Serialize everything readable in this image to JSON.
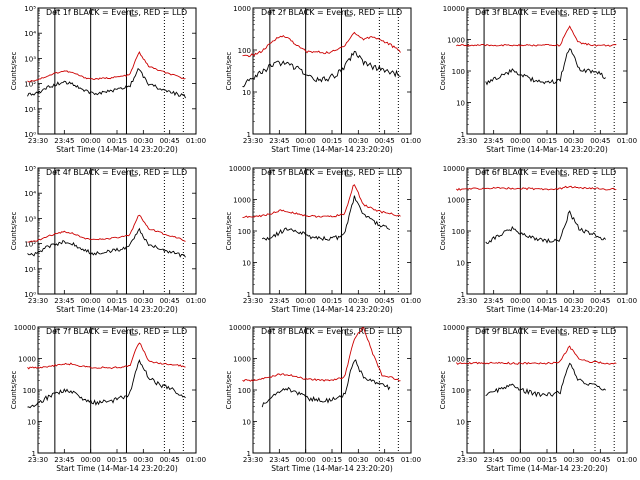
{
  "chart_data": {
    "type": "line",
    "panels": [
      {
        "title": "Det 1f BLACK = Events, RED = LLD",
        "scale": "A",
        "events": [
          35,
          40,
          70,
          90,
          120,
          90,
          60,
          40,
          45,
          50,
          60,
          80,
          400,
          90,
          70,
          50,
          40,
          30
        ],
        "lld": [
          120,
          140,
          190,
          260,
          320,
          260,
          180,
          150,
          160,
          170,
          190,
          220,
          1800,
          500,
          350,
          260,
          200,
          150
        ]
      },
      {
        "title": "Det 2f BLACK = Events, RED = LLD",
        "scale": "B",
        "events": [
          15,
          20,
          30,
          40,
          50,
          45,
          35,
          25,
          20,
          20,
          25,
          40,
          90,
          50,
          40,
          35,
          30,
          25
        ],
        "lld": [
          70,
          75,
          90,
          140,
          220,
          190,
          120,
          90,
          90,
          85,
          95,
          130,
          260,
          180,
          210,
          170,
          130,
          90
        ]
      },
      {
        "title": "Det 3f BLACK = Events, RED = LLD",
        "scale": "C",
        "events": [
          null,
          null,
          null,
          40,
          55,
          80,
          100,
          70,
          55,
          45,
          45,
          50,
          600,
          120,
          100,
          90,
          60,
          null
        ],
        "lld": [
          650,
          650,
          660,
          650,
          660,
          650,
          650,
          650,
          650,
          650,
          660,
          650,
          2600,
          800,
          700,
          650,
          650,
          650
        ]
      },
      {
        "title": "Det 4f BLACK = Events, RED = LLD",
        "scale": "A",
        "events": [
          35,
          40,
          70,
          90,
          120,
          90,
          60,
          40,
          45,
          50,
          60,
          80,
          400,
          90,
          70,
          50,
          40,
          30
        ],
        "lld": [
          110,
          130,
          180,
          250,
          300,
          250,
          170,
          140,
          150,
          160,
          180,
          210,
          1500,
          400,
          300,
          220,
          180,
          130
        ]
      },
      {
        "title": "Det 5f BLACK = Events, RED = LLD",
        "scale": "C",
        "events": [
          null,
          null,
          50,
          60,
          90,
          120,
          100,
          70,
          60,
          55,
          60,
          80,
          1200,
          350,
          200,
          150,
          120,
          null
        ],
        "lld": [
          280,
          280,
          300,
          350,
          450,
          400,
          350,
          300,
          290,
          280,
          300,
          350,
          3200,
          700,
          500,
          400,
          350,
          300
        ]
      },
      {
        "title": "Det 6f BLACK = Events, RED = LLD",
        "scale": "C",
        "events": [
          null,
          null,
          null,
          40,
          60,
          90,
          120,
          80,
          60,
          50,
          50,
          55,
          400,
          120,
          90,
          70,
          50,
          null
        ],
        "lld": [
          2100,
          2150,
          2200,
          2250,
          2300,
          2300,
          2250,
          2200,
          2200,
          2150,
          2150,
          2200,
          2600,
          2300,
          2250,
          2200,
          2150,
          2100
        ]
      },
      {
        "title": "Det 7f BLACK = Events, RED = LLD",
        "scale": "C",
        "events": [
          30,
          35,
          55,
          75,
          100,
          80,
          55,
          40,
          40,
          45,
          55,
          75,
          900,
          250,
          160,
          120,
          90,
          60
        ],
        "lld": [
          500,
          520,
          550,
          600,
          700,
          650,
          560,
          520,
          510,
          500,
          520,
          580,
          3500,
          900,
          700,
          650,
          620,
          560
        ]
      },
      {
        "title": "Det 8f BLACK = Events, RED = LLD",
        "scale": "C",
        "events": [
          null,
          null,
          30,
          50,
          90,
          110,
          80,
          55,
          50,
          45,
          55,
          70,
          1000,
          250,
          180,
          140,
          110,
          null
        ],
        "lld": [
          200,
          200,
          220,
          260,
          320,
          300,
          250,
          220,
          210,
          200,
          220,
          260,
          4000,
          10000,
          1500,
          300,
          250,
          200
        ]
      },
      {
        "title": "Det 9f BLACK = Events, RED = LLD",
        "scale": "C",
        "events": [
          null,
          null,
          null,
          70,
          90,
          120,
          150,
          100,
          80,
          70,
          70,
          80,
          700,
          200,
          150,
          130,
          100,
          null
        ],
        "lld": [
          700,
          700,
          720,
          700,
          750,
          720,
          700,
          700,
          700,
          700,
          720,
          750,
          2500,
          950,
          800,
          750,
          700,
          700
        ]
      }
    ],
    "x_ticks": [
      "23:30",
      "23:45",
      "00:00",
      "00:15",
      "00:30",
      "00:45",
      "01:00"
    ],
    "x_label": "Start Time (14-Mar-14 23:20:20)",
    "y_label": "Counts/sec",
    "y_scales": {
      "A": {
        "ticks": [
          "10⁵",
          "10⁴",
          "10³",
          "10²",
          "10¹",
          "10⁰"
        ],
        "ylim": [
          1,
          100000
        ]
      },
      "B": {
        "ticks": [
          "1000",
          "100",
          "10",
          "1"
        ],
        "ylim": [
          1,
          1000
        ]
      },
      "C": {
        "ticks": [
          "10000",
          "1000",
          "100",
          "10",
          "1"
        ],
        "ylim": [
          1,
          10000
        ]
      }
    },
    "y_scale": "log",
    "colors": {
      "events": "#000000",
      "lld": "#cc0000"
    }
  }
}
